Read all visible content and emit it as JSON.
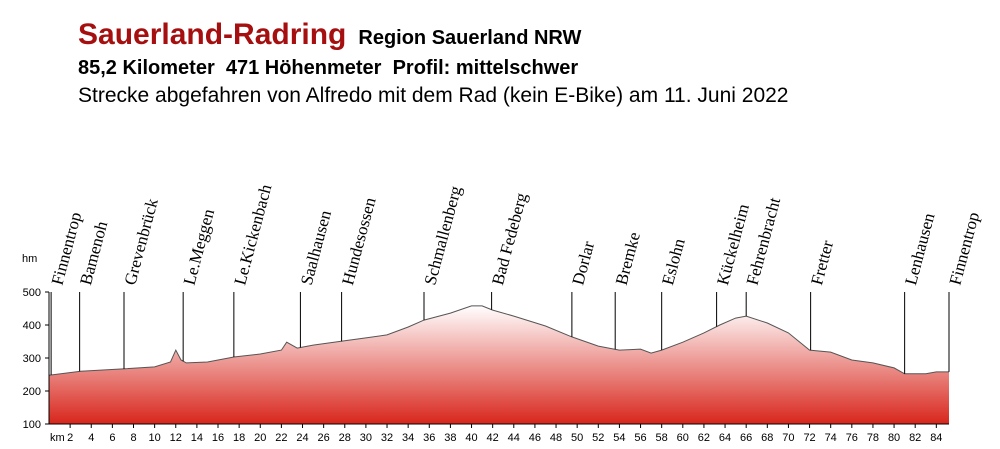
{
  "chart_data": {
    "type": "area",
    "title": "Sauerland-Radring",
    "subtitle": "Region Sauerland NRW",
    "stats": "85,2 Kilometer  471 Höhenmeter  Profil: mittelschwer",
    "note": "Strecke abgefahren von Alfredo mit dem Rad (kein E-Bike) am 11. Juni 2022",
    "xlabel": "km",
    "ylabel": "hm",
    "x": [
      0,
      3,
      7,
      10,
      11.5,
      12,
      12.5,
      13,
      15,
      17.5,
      20,
      22,
      22.5,
      23.5,
      25,
      28,
      30,
      32,
      34,
      35.5,
      38,
      40,
      41,
      42,
      44,
      47,
      49.5,
      52,
      54,
      56,
      57,
      58,
      60,
      62,
      63.5,
      65,
      66,
      68,
      70,
      72,
      74,
      76,
      78,
      80,
      81,
      83,
      84,
      85.2
    ],
    "values": [
      248,
      260,
      267,
      273,
      288,
      324,
      294,
      285,
      288,
      303,
      312,
      324,
      348,
      330,
      339,
      352,
      361,
      370,
      394,
      415,
      436,
      458,
      458,
      445,
      427,
      397,
      364,
      336,
      324,
      327,
      315,
      324,
      348,
      376,
      400,
      421,
      427,
      406,
      376,
      324,
      318,
      294,
      285,
      270,
      252,
      252,
      258,
      258
    ],
    "color": "#d8261c",
    "line_color": "#555555",
    "xlim": [
      0,
      85.2
    ],
    "ylim": [
      100,
      500
    ],
    "xticks": [
      2,
      4,
      6,
      8,
      10,
      12,
      14,
      16,
      18,
      20,
      22,
      24,
      26,
      28,
      30,
      32,
      34,
      36,
      38,
      40,
      42,
      44,
      46,
      48,
      50,
      52,
      54,
      56,
      58,
      60,
      62,
      64,
      66,
      68,
      70,
      72,
      74,
      76,
      78,
      80,
      82,
      84
    ],
    "yticks": [
      100,
      200,
      300,
      400,
      500
    ],
    "places": [
      {
        "name": "Finnentrop",
        "km": 0.2
      },
      {
        "name": "Bamenoh",
        "km": 2.9
      },
      {
        "name": "Grevenbrück",
        "km": 7.1
      },
      {
        "name": "Le.Meggen",
        "km": 12.7
      },
      {
        "name": "Le.Kickenbach",
        "km": 17.5
      },
      {
        "name": "Saalhausen",
        "km": 23.8
      },
      {
        "name": "Hundesossen",
        "km": 27.7
      },
      {
        "name": "Schmallenberg",
        "km": 35.5
      },
      {
        "name": "Bad Fedeberg",
        "km": 41.9
      },
      {
        "name": "Dorlar",
        "km": 49.5
      },
      {
        "name": "Bremke",
        "km": 53.6
      },
      {
        "name": "Eslohn",
        "km": 58.0
      },
      {
        "name": "Kückelheim",
        "km": 63.2
      },
      {
        "name": "Fehrenbracht",
        "km": 66.0
      },
      {
        "name": "Fretter",
        "km": 72.1
      },
      {
        "name": "Lenhausen",
        "km": 81.0
      },
      {
        "name": "Finnentrop",
        "km": 85.2
      }
    ]
  }
}
